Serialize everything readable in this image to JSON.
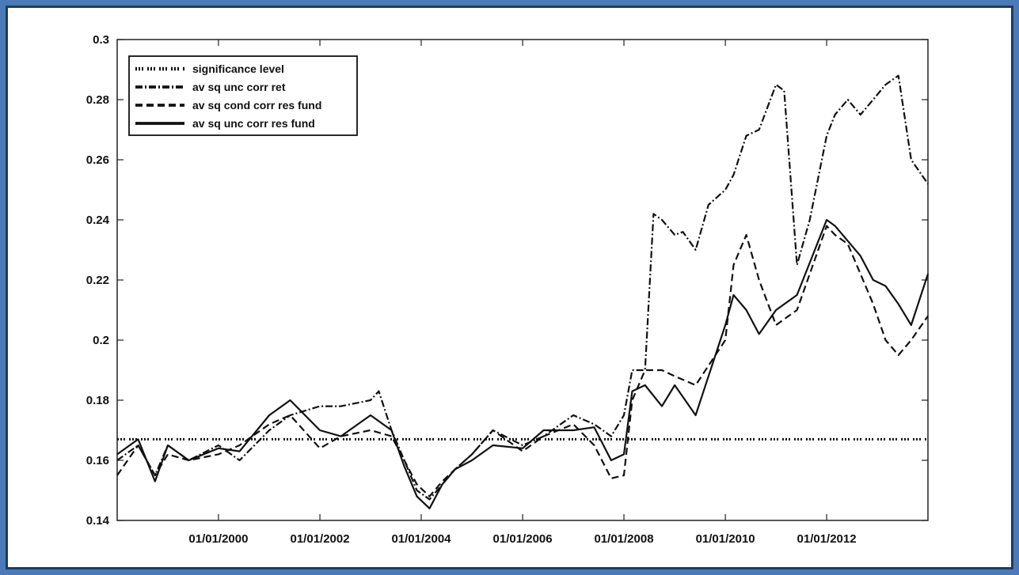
{
  "chart_data": {
    "type": "line",
    "title": "",
    "xlabel": "",
    "ylabel": "",
    "xlim": [
      "1998-01-01",
      "2013-12-31"
    ],
    "ylim": [
      0.14,
      0.3
    ],
    "xticks": [
      "2000-01-01",
      "2002-01-01",
      "2004-01-01",
      "2006-01-01",
      "2008-01-01",
      "2010-01-01",
      "2012-01-01"
    ],
    "xtick_labels": [
      "01/01/2000",
      "01/01/2002",
      "01/01/2004",
      "01/01/2006",
      "01/01/2008",
      "01/01/2010",
      "01/01/2012"
    ],
    "yticks": [
      0.14,
      0.16,
      0.18,
      0.2,
      0.22,
      0.24,
      0.26,
      0.28,
      0.3
    ],
    "ytick_labels": [
      "0.14",
      "0.16",
      "0.18",
      "0.2",
      "0.22",
      "0.24",
      "0.26",
      "0.28",
      "0.3"
    ],
    "grid": false,
    "legend_position": "top-left",
    "series": [
      {
        "name": "significance level",
        "style": "dotted-dash",
        "color": "#111111",
        "x": [
          "1998-01-01",
          "2013-12-31"
        ],
        "values": [
          0.167,
          0.167
        ]
      },
      {
        "name": "av sq unc corr ret",
        "style": "dash-dot",
        "color": "#111111",
        "x": [
          "1998-01-01",
          "1998-06-01",
          "1998-10-01",
          "1999-01-01",
          "1999-06-01",
          "2000-01-01",
          "2000-06-01",
          "2001-01-01",
          "2001-06-01",
          "2002-01-01",
          "2002-06-01",
          "2003-01-01",
          "2003-03-01",
          "2003-06-01",
          "2003-09-01",
          "2003-12-01",
          "2004-03-01",
          "2004-06-01",
          "2004-09-01",
          "2005-01-01",
          "2005-06-01",
          "2006-01-01",
          "2006-06-01",
          "2007-01-01",
          "2007-06-01",
          "2007-10-01",
          "2008-01-01",
          "2008-03-01",
          "2008-06-01",
          "2008-08-01",
          "2008-10-01",
          "2009-01-01",
          "2009-03-01",
          "2009-06-01",
          "2009-09-01",
          "2010-01-01",
          "2010-03-01",
          "2010-06-01",
          "2010-09-01",
          "2011-01-01",
          "2011-03-01",
          "2011-06-01",
          "2011-09-01",
          "2012-01-01",
          "2012-03-01",
          "2012-06-01",
          "2012-09-01",
          "2012-12-01",
          "2013-03-01",
          "2013-06-01",
          "2013-09-01",
          "2013-12-31"
        ],
        "values": [
          0.16,
          0.165,
          0.155,
          0.165,
          0.16,
          0.165,
          0.16,
          0.17,
          0.175,
          0.178,
          0.178,
          0.18,
          0.183,
          0.17,
          0.16,
          0.15,
          0.147,
          0.152,
          0.157,
          0.162,
          0.17,
          0.165,
          0.168,
          0.175,
          0.172,
          0.168,
          0.175,
          0.19,
          0.19,
          0.242,
          0.24,
          0.235,
          0.236,
          0.23,
          0.245,
          0.25,
          0.255,
          0.268,
          0.27,
          0.285,
          0.283,
          0.225,
          0.24,
          0.268,
          0.275,
          0.28,
          0.275,
          0.28,
          0.285,
          0.288,
          0.26,
          0.252
        ]
      },
      {
        "name": "av sq cond corr res fund",
        "style": "dashed",
        "color": "#111111",
        "x": [
          "1998-01-01",
          "1998-06-01",
          "1998-10-01",
          "1999-01-01",
          "1999-06-01",
          "2000-01-01",
          "2000-06-01",
          "2001-01-01",
          "2001-06-01",
          "2002-01-01",
          "2002-06-01",
          "2003-01-01",
          "2003-06-01",
          "2003-09-01",
          "2003-12-01",
          "2004-03-01",
          "2004-06-01",
          "2004-09-01",
          "2005-01-01",
          "2005-06-01",
          "2006-01-01",
          "2006-06-01",
          "2007-01-01",
          "2007-06-01",
          "2007-10-01",
          "2008-01-01",
          "2008-03-01",
          "2008-06-01",
          "2008-10-01",
          "2009-01-01",
          "2009-06-01",
          "2010-01-01",
          "2010-03-01",
          "2010-06-01",
          "2010-09-01",
          "2011-01-01",
          "2011-06-01",
          "2012-01-01",
          "2012-03-01",
          "2012-06-01",
          "2012-09-01",
          "2012-12-01",
          "2013-03-01",
          "2013-06-01",
          "2013-09-01",
          "2013-12-31"
        ],
        "values": [
          0.155,
          0.165,
          0.155,
          0.162,
          0.16,
          0.162,
          0.165,
          0.172,
          0.175,
          0.164,
          0.168,
          0.17,
          0.168,
          0.16,
          0.152,
          0.148,
          0.153,
          0.157,
          0.162,
          0.17,
          0.163,
          0.168,
          0.172,
          0.165,
          0.154,
          0.155,
          0.18,
          0.19,
          0.19,
          0.188,
          0.185,
          0.2,
          0.225,
          0.235,
          0.22,
          0.205,
          0.21,
          0.238,
          0.235,
          0.232,
          0.222,
          0.212,
          0.2,
          0.195,
          0.2,
          0.208
        ]
      },
      {
        "name": "av sq unc corr res fund",
        "style": "solid",
        "color": "#111111",
        "x": [
          "1998-01-01",
          "1998-06-01",
          "1998-10-01",
          "1999-01-01",
          "1999-06-01",
          "2000-01-01",
          "2000-06-01",
          "2001-01-01",
          "2001-06-01",
          "2002-01-01",
          "2002-06-01",
          "2003-01-01",
          "2003-06-01",
          "2003-09-01",
          "2003-12-01",
          "2004-03-01",
          "2004-06-01",
          "2004-09-01",
          "2005-01-01",
          "2005-06-01",
          "2006-01-01",
          "2006-06-01",
          "2007-01-01",
          "2007-06-01",
          "2007-10-01",
          "2008-01-01",
          "2008-03-01",
          "2008-06-01",
          "2008-10-01",
          "2009-01-01",
          "2009-06-01",
          "2010-01-01",
          "2010-03-01",
          "2010-06-01",
          "2010-09-01",
          "2011-01-01",
          "2011-06-01",
          "2012-01-01",
          "2012-03-01",
          "2012-06-01",
          "2012-09-01",
          "2012-12-01",
          "2013-03-01",
          "2013-06-01",
          "2013-09-01",
          "2013-12-31"
        ],
        "values": [
          0.162,
          0.167,
          0.153,
          0.165,
          0.16,
          0.164,
          0.163,
          0.175,
          0.18,
          0.17,
          0.168,
          0.175,
          0.17,
          0.158,
          0.148,
          0.144,
          0.152,
          0.157,
          0.16,
          0.165,
          0.164,
          0.17,
          0.17,
          0.171,
          0.16,
          0.162,
          0.183,
          0.185,
          0.178,
          0.185,
          0.175,
          0.205,
          0.215,
          0.21,
          0.202,
          0.21,
          0.215,
          0.24,
          0.238,
          0.233,
          0.228,
          0.22,
          0.218,
          0.212,
          0.205,
          0.222
        ]
      }
    ]
  }
}
